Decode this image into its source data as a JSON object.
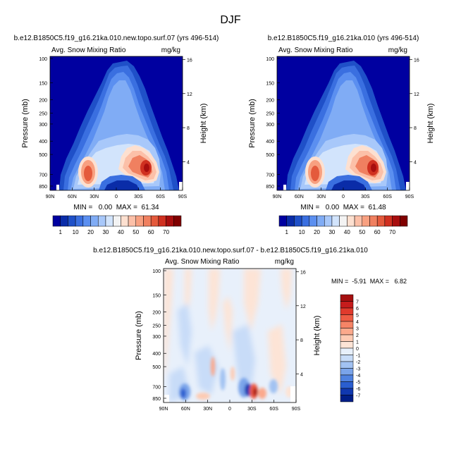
{
  "figure_title": "DJF",
  "chart_data": [
    {
      "type": "contour",
      "title": "b.e12.B1850C5.f19_g16.21ka.010.new.topo.surf.07 (yrs 496-514)",
      "left_label": "Avg. Snow Mixing Ratio",
      "units": "mg/kg",
      "ylabel": "Pressure (mb)",
      "y2label": "Height (km)",
      "x_ticks": [
        "90N",
        "60N",
        "30N",
        "0",
        "30S",
        "60S",
        "90S"
      ],
      "pressure_ticks": [
        "100",
        "150",
        "200",
        "250",
        "300",
        "400",
        "500",
        "700",
        "850"
      ],
      "height_ticks": [
        "16",
        "12",
        "8",
        "4"
      ],
      "stats": "MIN =   0.00  MAX =  61.34",
      "min": 0.0,
      "max": 61.34,
      "levels": [
        "1",
        "10",
        "20",
        "30",
        "40",
        "50",
        "60",
        "70"
      ],
      "colors": [
        "#0000a0",
        "#0a2ca8",
        "#1f50c8",
        "#3a6fe0",
        "#5b8ff0",
        "#80acf5",
        "#a8c8fa",
        "#d2e4fc",
        "#f3f3f3",
        "#fde0d0",
        "#fcc0a8",
        "#f8a080",
        "#f08060",
        "#e45a3c",
        "#d03020",
        "#a80e0e",
        "#800000"
      ]
    },
    {
      "type": "contour",
      "title": "b.e12.B1850C5.f19_g16.21ka.010 (yrs 496-514)",
      "left_label": "Avg. Snow Mixing Ratio",
      "units": "mg/kg",
      "ylabel": "Pressure (mb)",
      "y2label": "Height (km)",
      "x_ticks": [
        "90N",
        "60N",
        "30N",
        "0",
        "30S",
        "60S",
        "90S"
      ],
      "pressure_ticks": [
        "100",
        "150",
        "200",
        "250",
        "300",
        "400",
        "500",
        "700",
        "850"
      ],
      "height_ticks": [
        "16",
        "12",
        "8",
        "4"
      ],
      "stats": "MIN =   0.00  MAX =  61.48",
      "min": 0.0,
      "max": 61.48,
      "levels": [
        "1",
        "10",
        "20",
        "30",
        "40",
        "50",
        "60",
        "70"
      ],
      "colors": [
        "#0000a0",
        "#0a2ca8",
        "#1f50c8",
        "#3a6fe0",
        "#5b8ff0",
        "#80acf5",
        "#a8c8fa",
        "#d2e4fc",
        "#f3f3f3",
        "#fde0d0",
        "#fcc0a8",
        "#f8a080",
        "#f08060",
        "#e45a3c",
        "#d03020",
        "#a80e0e",
        "#800000"
      ]
    },
    {
      "type": "contour-difference",
      "title": "b.e12.B1850C5.f19_g16.21ka.010.new.topo.surf.07 - b.e12.B1850C5.f19_g16.21ka.010",
      "left_label": "Avg. Snow Mixing Ratio",
      "units": "mg/kg",
      "ylabel": "Pressure (mb)",
      "y2label": "Height (km)",
      "x_ticks": [
        "90N",
        "60N",
        "30N",
        "0",
        "30S",
        "60S",
        "90S"
      ],
      "pressure_ticks": [
        "100",
        "150",
        "200",
        "250",
        "300",
        "400",
        "500",
        "700",
        "850"
      ],
      "height_ticks": [
        "16",
        "12",
        "8",
        "4"
      ],
      "stats": "MIN =  -5.91  MAX =   6.82",
      "min": -5.91,
      "max": 6.82,
      "levels": [
        "7",
        "6",
        "5",
        "4",
        "3",
        "2",
        "1",
        "0",
        "-1",
        "-2",
        "-3",
        "-4",
        "-5",
        "-6",
        "-7"
      ],
      "colors": [
        "#a50f0f",
        "#c61c1c",
        "#e03a2c",
        "#ee5c44",
        "#f68466",
        "#fba98c",
        "#fdcbb4",
        "#fde4d6",
        "#e8f0fb",
        "#c8dcf8",
        "#a2c2f2",
        "#7aa4ea",
        "#4f82e0",
        "#2a5ed0",
        "#1038b0",
        "#001e88"
      ]
    }
  ]
}
